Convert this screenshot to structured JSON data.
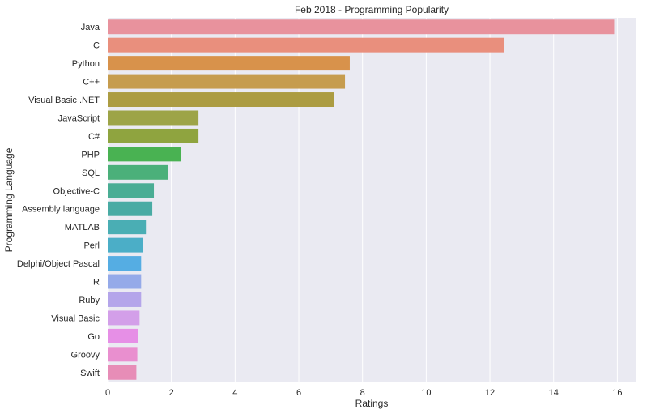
{
  "chart_data": {
    "type": "bar",
    "orientation": "horizontal",
    "title": "Feb 2018 - Programming Popularity",
    "xlabel": "Ratings",
    "ylabel": "Programming Language",
    "xlim": [
      0,
      16.6
    ],
    "xticks": [
      0,
      2,
      4,
      6,
      8,
      10,
      12,
      14,
      16
    ],
    "grid": true,
    "categories": [
      "Java",
      "C",
      "Python",
      "C++",
      "Visual Basic .NET",
      "JavaScript",
      "C#",
      "PHP",
      "SQL",
      "Objective-C",
      "Assembly language",
      "MATLAB",
      "Perl",
      "Delphi/Object Pascal",
      "R",
      "Ruby",
      "Visual Basic",
      "Go",
      "Groovy",
      "Swift"
    ],
    "values": [
      15.9,
      12.45,
      7.6,
      7.45,
      7.1,
      2.85,
      2.85,
      2.3,
      1.9,
      1.45,
      1.4,
      1.2,
      1.1,
      1.05,
      1.05,
      1.05,
      1.0,
      0.95,
      0.93,
      0.9
    ],
    "colors": [
      "#e8929d",
      "#e98f7d",
      "#d8924b",
      "#c69c4e",
      "#ac9c42",
      "#9da447",
      "#8fa43f",
      "#49b252",
      "#4bb07a",
      "#4aad94",
      "#49aba4",
      "#4aaeb4",
      "#4baec7",
      "#55ade3",
      "#95aae9",
      "#b4a5ea",
      "#d39fe9",
      "#e68fe6",
      "#e98fcf",
      "#e78db7"
    ],
    "background": "#eaeaf2",
    "grid_color": "#ffffff"
  }
}
